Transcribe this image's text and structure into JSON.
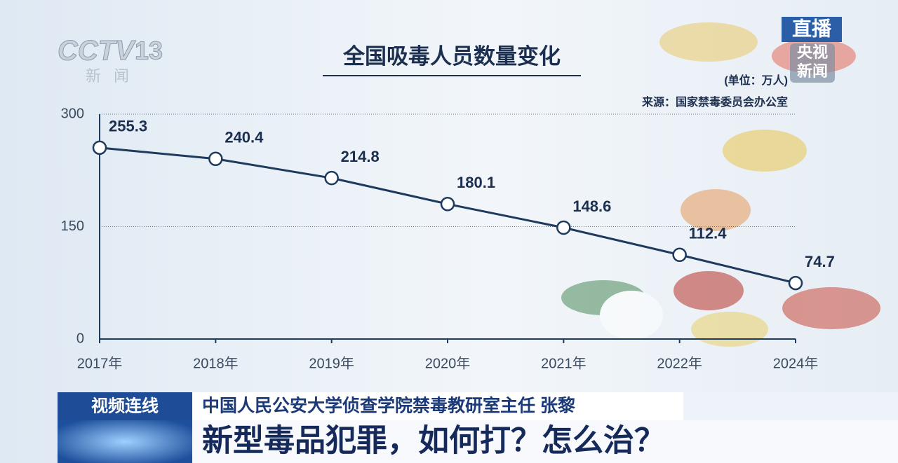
{
  "chart_data": {
    "type": "line",
    "title": "全国吸毒人员数量变化",
    "unit_note": "(单位：万人)",
    "source": "来源：国家禁毒委员会办公室",
    "categories": [
      "2017年",
      "2018年",
      "2019年",
      "2020年",
      "2021年",
      "2022年",
      "2024年"
    ],
    "values": [
      255.3,
      240.4,
      214.8,
      180.1,
      148.6,
      112.4,
      74.7
    ],
    "color": "#1e3a5c",
    "ylim": [
      0,
      300
    ],
    "yticks": [
      0,
      150,
      300
    ],
    "grid": true
  },
  "logo": {
    "channel": "CCTV",
    "number": "13",
    "sub": "新闻"
  },
  "badge": {
    "live": "直播",
    "brand_top": "央视",
    "brand_bottom": "新闻"
  },
  "lower_third": {
    "tag": "视频连线",
    "speaker": "中国人民公安大学侦查学院禁毒教研室主任 张黎",
    "headline": "新型毒品犯罪，如何打？怎么治？"
  }
}
